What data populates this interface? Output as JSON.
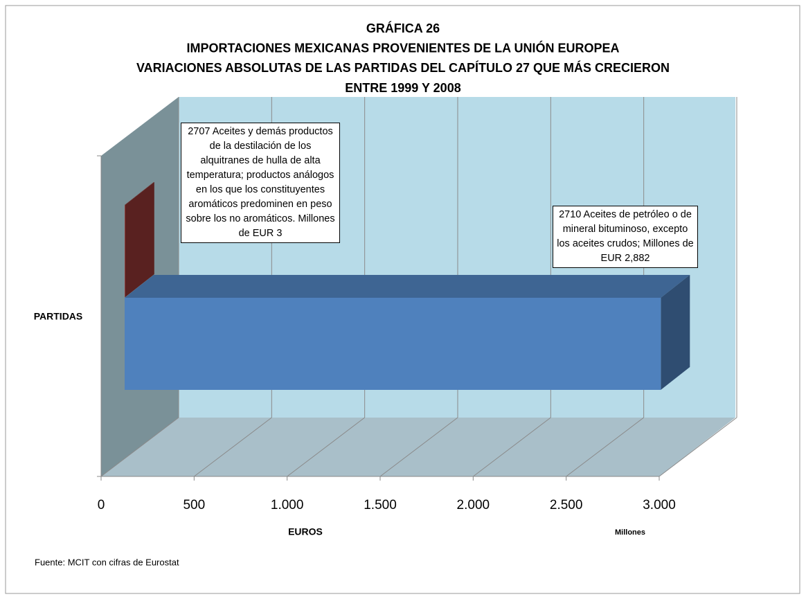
{
  "chart_data": {
    "type": "bar3d",
    "title": [
      "GRÁFICA 26",
      "IMPORTACIONES MEXICANAS PROVENIENTES DE LA UNIÓN EUROPEA",
      "VARIACIONES ABSOLUTAS DE LAS PARTIDAS DEL CAPÍTULO 27 QUE MÁS CRECIERON",
      "ENTRE 1999 Y 2008"
    ],
    "categories": [
      null,
      null
    ],
    "values": [
      3,
      2882
    ],
    "value_labels": [
      "2707 Aceites y demás productos de la destilación de los alquitranes de hulla de alta temperatura; productos análogos en los que los constituyentes aromáticos predominen en peso sobre los no aromáticos.  Millones de EUR  3",
      "2710 Aceites de petróleo o de mineral bituminoso, excepto los aceites crudos; Millones de EUR 2,882"
    ],
    "colors": [
      "#953735",
      "#4f81bd"
    ],
    "xlim": [
      0,
      3000
    ],
    "xticks": [
      0,
      500,
      {
        "value": 1000,
        "label": "1.000"
      },
      {
        "value": 1500,
        "label": "1.500"
      },
      {
        "value": 2000,
        "label": "2.000"
      },
      {
        "value": 2500,
        "label": "2.500"
      },
      {
        "value": 3000,
        "label": "3.000"
      }
    ],
    "x_label": "EUROS",
    "x_units": "Millones",
    "y_label": "PARTIDAS",
    "grid": true,
    "source": "Fuente: MCIT con cifras de Eurostat"
  }
}
